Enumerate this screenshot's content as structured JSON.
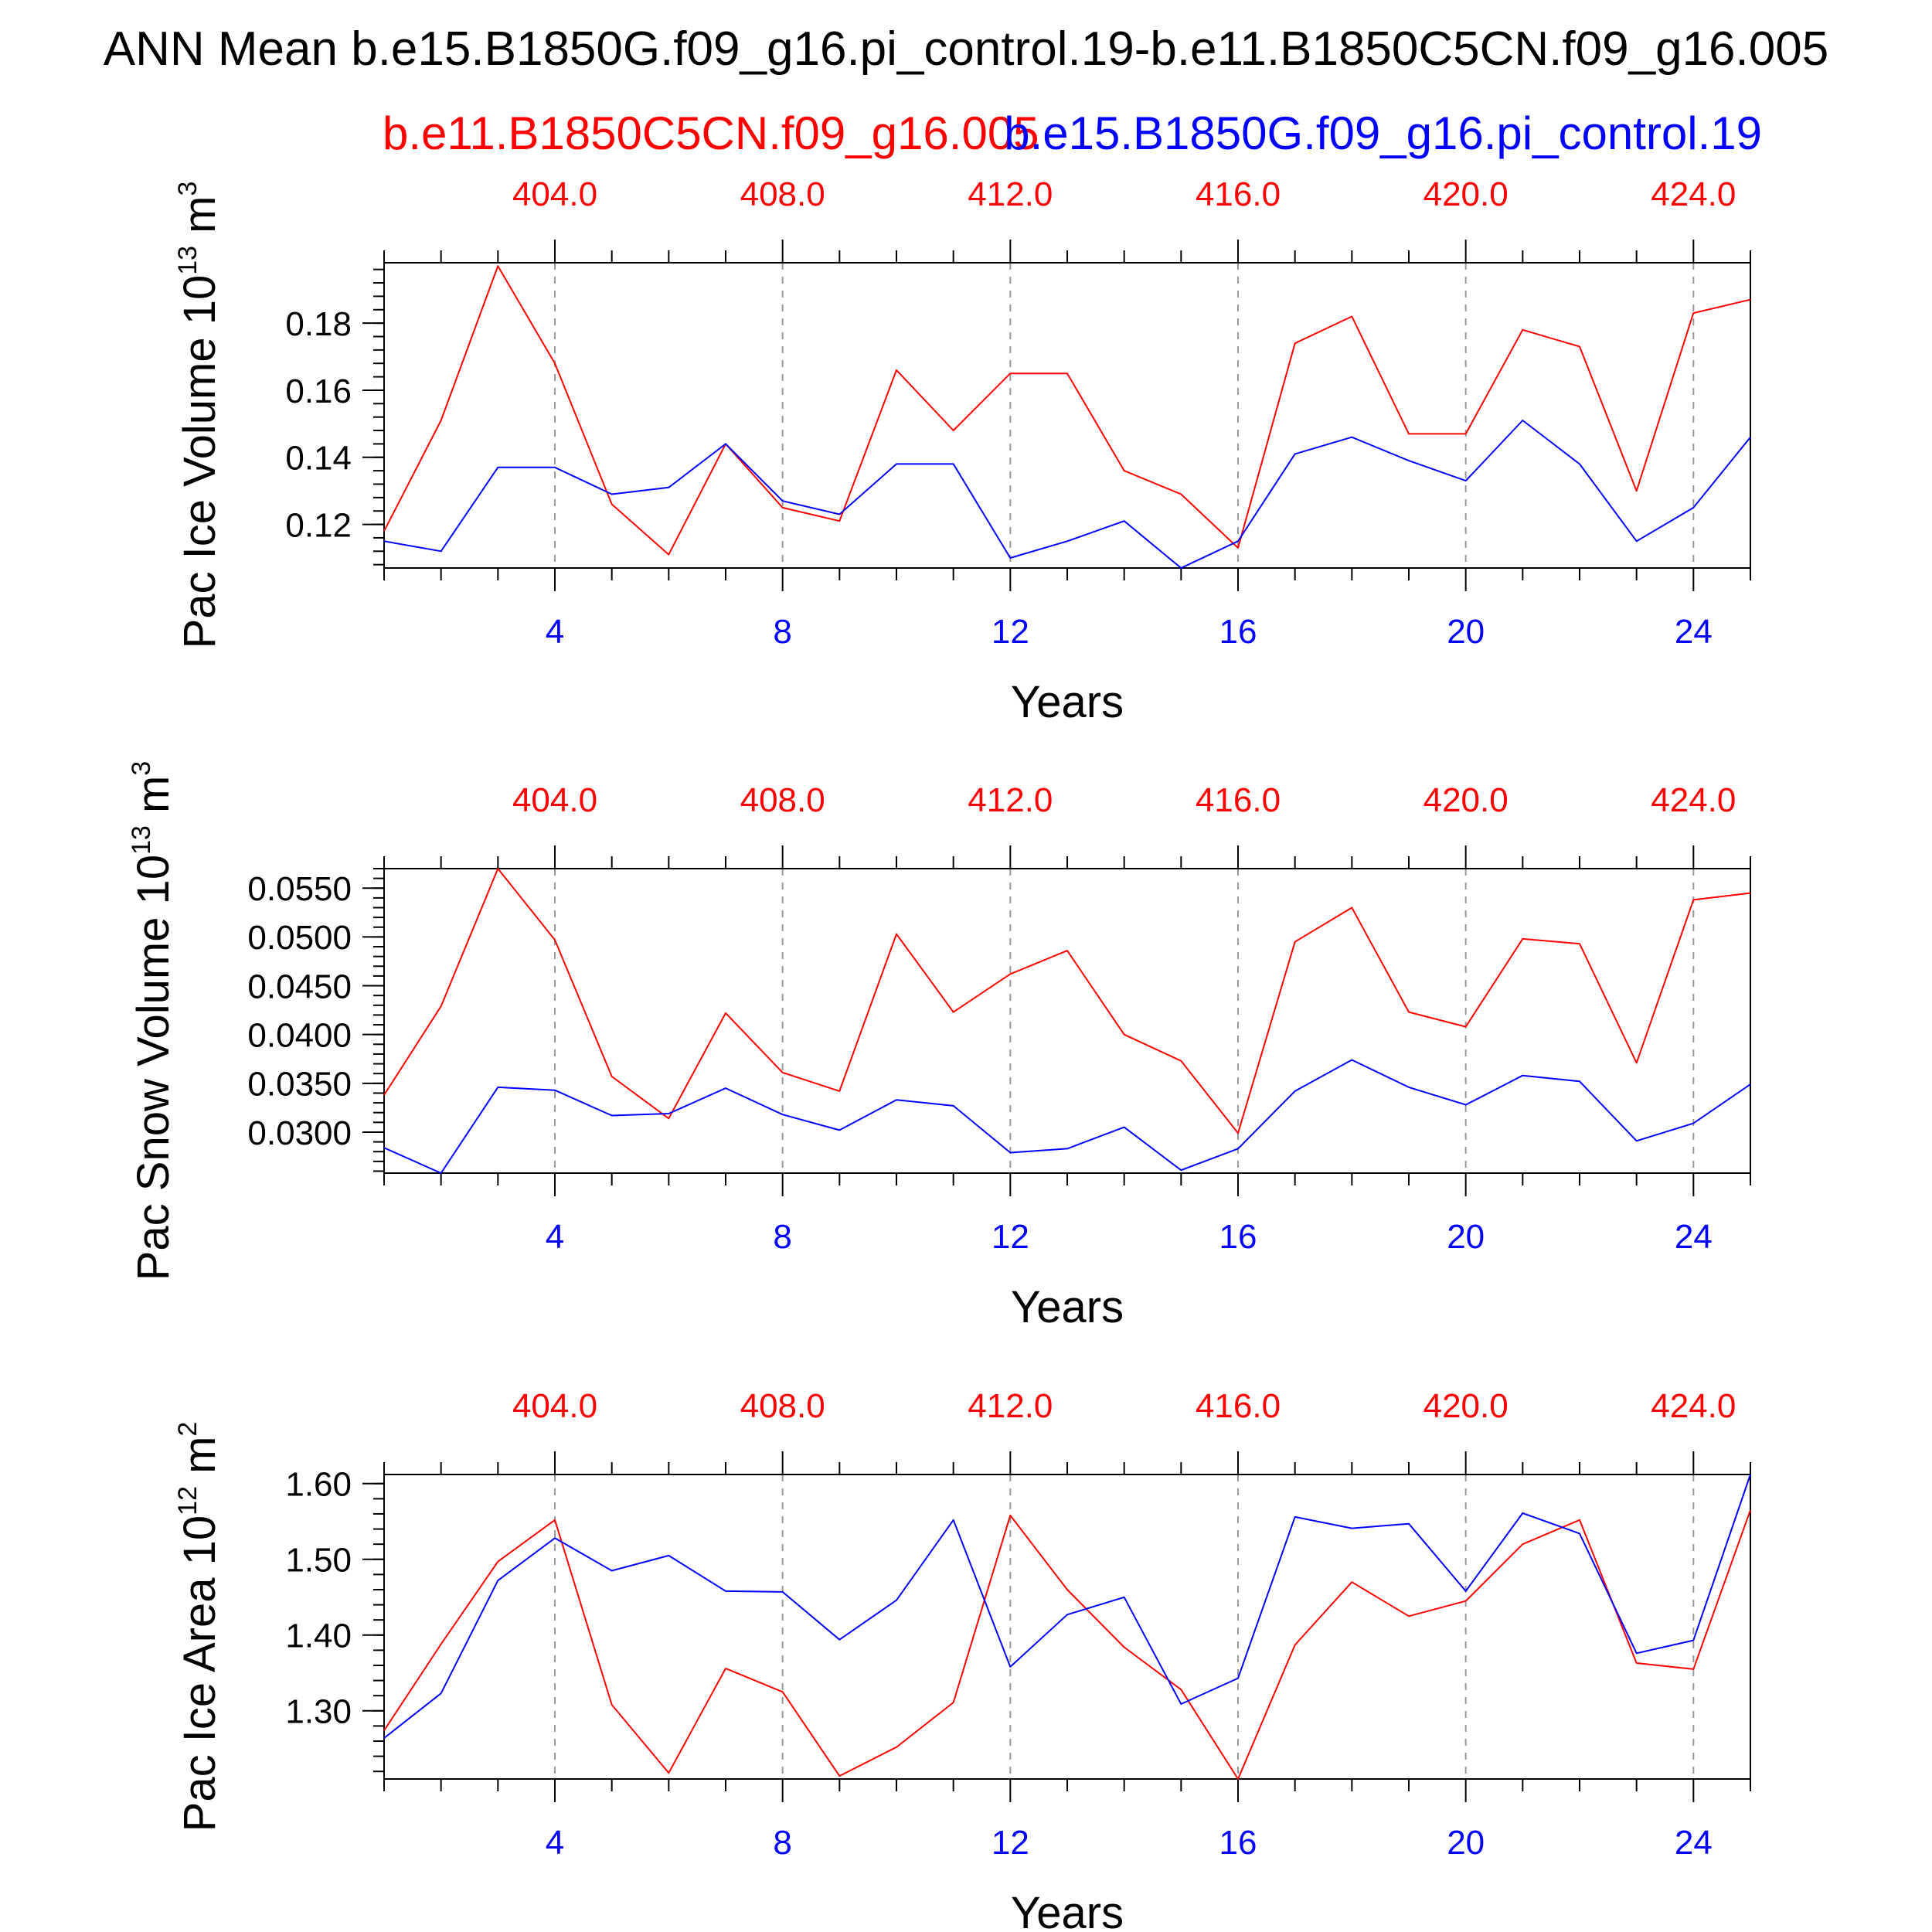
{
  "title": "ANN Mean b.e15.B1850G.f09_g16.pi_control.19-b.e11.B1850C5CN.f09_g16.005",
  "legend": {
    "red_case": "b.e11.B1850C5CN.f09_g16.005",
    "blue_case": "b.e15.B1850G.f09_g16.pi_control.19"
  },
  "colors": {
    "red": "#ff0000",
    "blue": "#0000ff",
    "axis": "#000000",
    "grid": "#999999"
  },
  "chart_data": [
    {
      "type": "line",
      "ylabel": "Pac Ice Volume 10",
      "ylabel_exp": "13",
      "ylabel_unit": " m",
      "ylabel_unit_exp": "3",
      "xlabel": "Years",
      "xlim": [
        1,
        25
      ],
      "ylim": [
        0.107,
        0.198
      ],
      "yticks": [
        0.12,
        0.14,
        0.16,
        0.18
      ],
      "ytick_labels": [
        "0.12",
        "0.14",
        "0.16",
        "0.18"
      ],
      "yminor_step": 0.004,
      "bottom_ticks": [
        4,
        8,
        12,
        16,
        20,
        24
      ],
      "bottom_tick_labels": [
        "4",
        "8",
        "12",
        "16",
        "20",
        "24"
      ],
      "top_tick_labels": [
        "404.0",
        "408.0",
        "412.0",
        "416.0",
        "420.0",
        "424.0"
      ],
      "x": [
        1,
        2,
        3,
        4,
        5,
        6,
        7,
        8,
        9,
        10,
        11,
        12,
        13,
        14,
        15,
        16,
        17,
        18,
        19,
        20,
        21,
        22,
        23,
        24,
        25
      ],
      "series": [
        {
          "name": "b.e11.B1850C5CN.f09_g16.005",
          "color": "#ff0000",
          "values": [
            0.118,
            0.151,
            0.197,
            0.168,
            0.126,
            0.111,
            0.144,
            0.125,
            0.121,
            0.166,
            0.148,
            0.165,
            0.165,
            0.136,
            0.129,
            0.113,
            0.174,
            0.182,
            0.147,
            0.147,
            0.178,
            0.173,
            0.13,
            0.183,
            0.187
          ]
        },
        {
          "name": "b.e15.B1850G.f09_g16.pi_control.19",
          "color": "#0000ff",
          "values": [
            0.115,
            0.112,
            0.137,
            0.137,
            0.129,
            0.131,
            0.144,
            0.127,
            0.123,
            0.138,
            0.138,
            0.11,
            0.115,
            0.121,
            0.107,
            0.115,
            0.141,
            0.146,
            0.139,
            0.133,
            0.151,
            0.138,
            0.115,
            0.125,
            0.146
          ]
        }
      ]
    },
    {
      "type": "line",
      "ylabel": "Pac Snow Volume 10",
      "ylabel_exp": "13",
      "ylabel_unit": " m",
      "ylabel_unit_exp": "3",
      "xlabel": "Years",
      "xlim": [
        1,
        25
      ],
      "ylim": [
        0.0258,
        0.057
      ],
      "yticks": [
        0.03,
        0.035,
        0.04,
        0.045,
        0.05,
        0.055
      ],
      "ytick_labels": [
        "0.0300",
        "0.0350",
        "0.0400",
        "0.0450",
        "0.0500",
        "0.0550"
      ],
      "yminor_step": 0.001,
      "bottom_ticks": [
        4,
        8,
        12,
        16,
        20,
        24
      ],
      "bottom_tick_labels": [
        "4",
        "8",
        "12",
        "16",
        "20",
        "24"
      ],
      "top_tick_labels": [
        "404.0",
        "408.0",
        "412.0",
        "416.0",
        "420.0",
        "424.0"
      ],
      "x": [
        1,
        2,
        3,
        4,
        5,
        6,
        7,
        8,
        9,
        10,
        11,
        12,
        13,
        14,
        15,
        16,
        17,
        18,
        19,
        20,
        21,
        22,
        23,
        24,
        25
      ],
      "series": [
        {
          "name": "b.e11.B1850C5CN.f09_g16.005",
          "color": "#ff0000",
          "values": [
            0.0338,
            0.0429,
            0.057,
            0.0497,
            0.0357,
            0.0314,
            0.0422,
            0.0361,
            0.0342,
            0.0503,
            0.0423,
            0.0462,
            0.0486,
            0.04,
            0.0373,
            0.0299,
            0.0495,
            0.053,
            0.0423,
            0.0408,
            0.0498,
            0.0493,
            0.0371,
            0.0538,
            0.0545
          ]
        },
        {
          "name": "b.e15.B1850G.f09_g16.pi_control.19",
          "color": "#0000ff",
          "values": [
            0.0284,
            0.0258,
            0.0346,
            0.0343,
            0.0317,
            0.0319,
            0.0345,
            0.0318,
            0.0302,
            0.0333,
            0.0327,
            0.0279,
            0.0283,
            0.0305,
            0.0261,
            0.0283,
            0.0342,
            0.0374,
            0.0346,
            0.0328,
            0.0358,
            0.0352,
            0.0291,
            0.0309,
            0.0349
          ]
        }
      ]
    },
    {
      "type": "line",
      "ylabel": "Pac Ice Area 10",
      "ylabel_exp": "12",
      "ylabel_unit": " m",
      "ylabel_unit_exp": "2",
      "xlabel": "Years",
      "xlim": [
        1,
        25
      ],
      "ylim": [
        1.21,
        1.612
      ],
      "yticks": [
        1.3,
        1.4,
        1.5,
        1.6
      ],
      "ytick_labels": [
        "1.30",
        "1.40",
        "1.50",
        "1.60"
      ],
      "yminor_step": 0.02,
      "bottom_ticks": [
        4,
        8,
        12,
        16,
        20,
        24
      ],
      "bottom_tick_labels": [
        "4",
        "8",
        "12",
        "16",
        "20",
        "24"
      ],
      "top_tick_labels": [
        "404.0",
        "408.0",
        "412.0",
        "416.0",
        "420.0",
        "424.0"
      ],
      "x": [
        1,
        2,
        3,
        4,
        5,
        6,
        7,
        8,
        9,
        10,
        11,
        12,
        13,
        14,
        15,
        16,
        17,
        18,
        19,
        20,
        21,
        22,
        23,
        24,
        25
      ],
      "series": [
        {
          "name": "b.e11.B1850C5CN.f09_g16.005",
          "color": "#ff0000",
          "values": [
            1.274,
            1.388,
            1.497,
            1.552,
            1.308,
            1.218,
            1.356,
            1.325,
            1.214,
            1.252,
            1.311,
            1.558,
            1.46,
            1.384,
            1.328,
            1.21,
            1.387,
            1.47,
            1.425,
            1.445,
            1.52,
            1.552,
            1.363,
            1.355,
            1.565
          ]
        },
        {
          "name": "b.e15.B1850G.f09_g16.pi_control.19",
          "color": "#0000ff",
          "values": [
            1.264,
            1.323,
            1.472,
            1.528,
            1.485,
            1.505,
            1.458,
            1.457,
            1.394,
            1.446,
            1.552,
            1.358,
            1.427,
            1.45,
            1.309,
            1.343,
            1.556,
            1.541,
            1.547,
            1.458,
            1.561,
            1.534,
            1.376,
            1.393,
            1.612
          ]
        }
      ]
    }
  ]
}
